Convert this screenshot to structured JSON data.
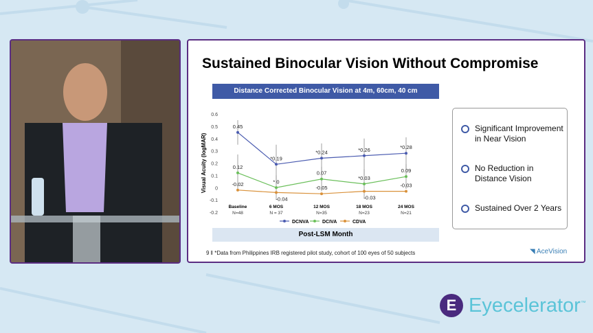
{
  "slide": {
    "title": "Sustained Binocular Vision Without Compromise",
    "chart_banner": "Distance Corrected Binocular Vision at 4m, 60cm, 40 cm",
    "x_banner": "Post-LSM Month",
    "page_number": "9",
    "footnote": "*Data from Philippines IRB registered pilot study, cohort of 100 eyes of 50 subjects",
    "logo": "AceVision",
    "bullets": [
      "Significant Improvement in Near Vision",
      "No Reduction in Distance Vision",
      "Sustained Over 2 Years"
    ]
  },
  "brand": {
    "name": "Eyecelerator",
    "tm": "™",
    "logo_letter": "E"
  },
  "chart_data": {
    "type": "line",
    "ylabel": "Visual Acuity (logMAR)",
    "ylim": [
      -0.2,
      0.6
    ],
    "yticks": [
      0.6,
      0.5,
      0.4,
      0.3,
      0.2,
      0.1,
      0,
      -0.1,
      -0.2
    ],
    "categories": [
      "Baseline",
      "6 MOS",
      "12 MOS",
      "18 MOS",
      "24 MOS"
    ],
    "category_n": [
      "N=48",
      "N = 37",
      "N=35",
      "N=23",
      "N=21"
    ],
    "legend_position": "bottom",
    "series": [
      {
        "name": "DCNVA",
        "color": "#4a5bb0",
        "values": [
          0.45,
          0.19,
          0.24,
          0.26,
          0.28
        ],
        "labels": [
          "0.45",
          "*0.19",
          "*0.24",
          "*0.26",
          "*0.28"
        ],
        "err_low": [
          0.35,
          0.03,
          0.12,
          0.1,
          0.15
        ],
        "err_high": [
          0.55,
          0.35,
          0.36,
          0.4,
          0.41
        ]
      },
      {
        "name": "DCIVA",
        "color": "#6abf5a",
        "values": [
          0.12,
          0,
          0.07,
          0.03,
          0.09
        ],
        "labels": [
          "0.12",
          "* 0",
          "0.07",
          "*0.03",
          "0.09"
        ],
        "err_low": [
          -0.03,
          -0.1,
          -0.03,
          -0.09,
          -0.01
        ],
        "err_high": [
          0.27,
          0.1,
          0.17,
          0.15,
          0.19
        ]
      },
      {
        "name": "CDVA",
        "color": "#d9913a",
        "values": [
          -0.02,
          -0.04,
          -0.05,
          -0.03,
          -0.03
        ],
        "labels": [
          "-0.02",
          "-0.04",
          "-0.05",
          "-0.03",
          "-0.03"
        ]
      }
    ]
  }
}
